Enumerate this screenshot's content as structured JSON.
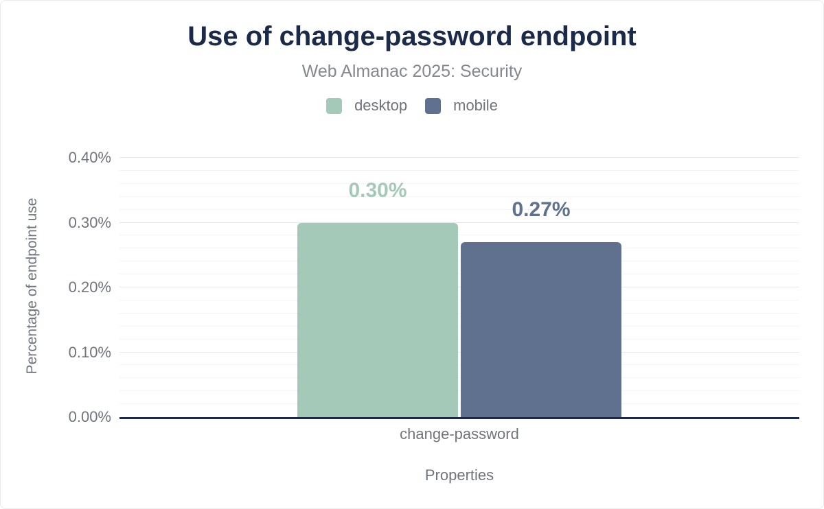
{
  "chart_data": {
    "type": "bar",
    "title": "Use of change-password endpoint",
    "subtitle": "Web Almanac 2025: Security",
    "xlabel": "Properties",
    "ylabel": "Percentage of endpoint use",
    "categories": [
      "change-password"
    ],
    "series": [
      {
        "name": "desktop",
        "values": [
          0.3
        ],
        "labels": [
          "0.30%"
        ],
        "color": "#a5c9b8"
      },
      {
        "name": "mobile",
        "values": [
          0.27
        ],
        "labels": [
          "0.27%"
        ],
        "color": "#5f718e"
      }
    ],
    "ylim": [
      0,
      0.4
    ],
    "yticks": [
      {
        "value": 0.4,
        "label": "0.40%"
      },
      {
        "value": 0.3,
        "label": "0.30%"
      },
      {
        "value": 0.2,
        "label": "0.20%"
      },
      {
        "value": 0.1,
        "label": "0.10%"
      },
      {
        "value": 0.0,
        "label": "0.00%"
      }
    ],
    "minor_tick_step": 0.02,
    "grid": true,
    "legend_position": "top"
  },
  "colors": {
    "background": "#ffffff",
    "title": "#1b2a49",
    "subtitle": "#85888f",
    "legend_text": "#6f727a",
    "axis_text": "#71747c",
    "axis_line": "#1b2a49",
    "gridline_major": "#e6e8ec",
    "gridline_minor": "#f3f4f6"
  }
}
